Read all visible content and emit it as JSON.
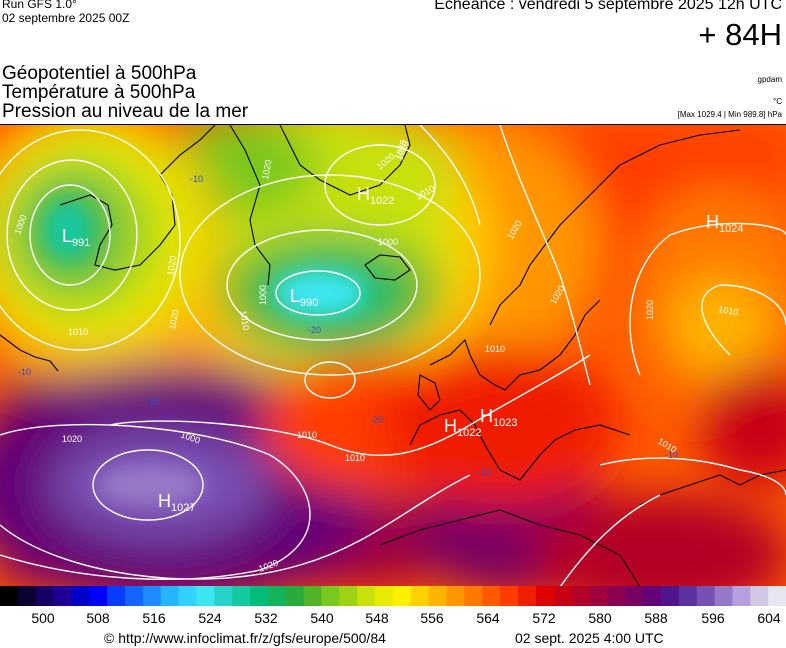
{
  "header": {
    "run_label": "Run GFS 1.0°",
    "run_date": "02 septembre 2025 00Z",
    "echeance": "Echéance : vendredi 5 septembre 2025 12h UTC",
    "lead_time": "+ 84H",
    "title_lines": [
      "Géopotentiel à 500hPa",
      "Température à 500hPa",
      "Pression au niveau de la mer"
    ],
    "unit_geopotential": "gpdam",
    "unit_temperature": "°C",
    "pressure_range": "[Max 1029.4 | Min 989.8] hPa"
  },
  "map": {
    "pressure_centers": [
      {
        "type": "L",
        "value": "991"
      },
      {
        "type": "L",
        "value": "990"
      },
      {
        "type": "H",
        "value": "1022"
      },
      {
        "type": "H",
        "value": "1024"
      },
      {
        "type": "H",
        "value": "1022"
      },
      {
        "type": "H",
        "value": "1023"
      },
      {
        "type": "H",
        "value": "1027"
      }
    ],
    "isobar_labels": [
      "1000",
      "1010",
      "1020",
      "1010",
      "1000",
      "1000",
      "1010",
      "1020",
      "1020",
      "1010",
      "1000",
      "1010",
      "1020",
      "1020",
      "1020",
      "1020",
      "1020",
      "1010",
      "1010",
      "1020",
      "1020",
      "1020",
      "1010"
    ],
    "temperature_labels": [
      "-10",
      "-20",
      "-10",
      "-20",
      "-10",
      "-10",
      "-10"
    ]
  },
  "color_scale": {
    "ticks": [
      "500",
      "508",
      "516",
      "524",
      "532",
      "540",
      "548",
      "556",
      "564",
      "572",
      "580",
      "588",
      "596",
      "604"
    ],
    "colors": [
      "#000000",
      "#0a0032",
      "#140064",
      "#1e0096",
      "#0000c8",
      "#0000ff",
      "#0a3cff",
      "#1464ff",
      "#1e8cff",
      "#28b4ff",
      "#32d2ff",
      "#3ce6f0",
      "#28d2c8",
      "#14c8a0",
      "#00be78",
      "#14b45a",
      "#28aa3c",
      "#50b428",
      "#78c81e",
      "#a0d214",
      "#c8e10a",
      "#e6eb00",
      "#fff000",
      "#ffd200",
      "#ffb400",
      "#ff9600",
      "#ff7800",
      "#ff5a00",
      "#ff3c00",
      "#f01e00",
      "#e10000",
      "#c80014",
      "#b40028",
      "#a0003c",
      "#8c0050",
      "#780064",
      "#640078",
      "#50148c",
      "#5a32a0",
      "#7850b4",
      "#9678c8",
      "#b4a0dc",
      "#d2c8e6",
      "#e6e6f0"
    ]
  },
  "footer": {
    "url": "© http://www.infoclimat.fr/z/gfs/europe/500/84",
    "generated": "02 sept. 2025  4:00 UTC"
  }
}
